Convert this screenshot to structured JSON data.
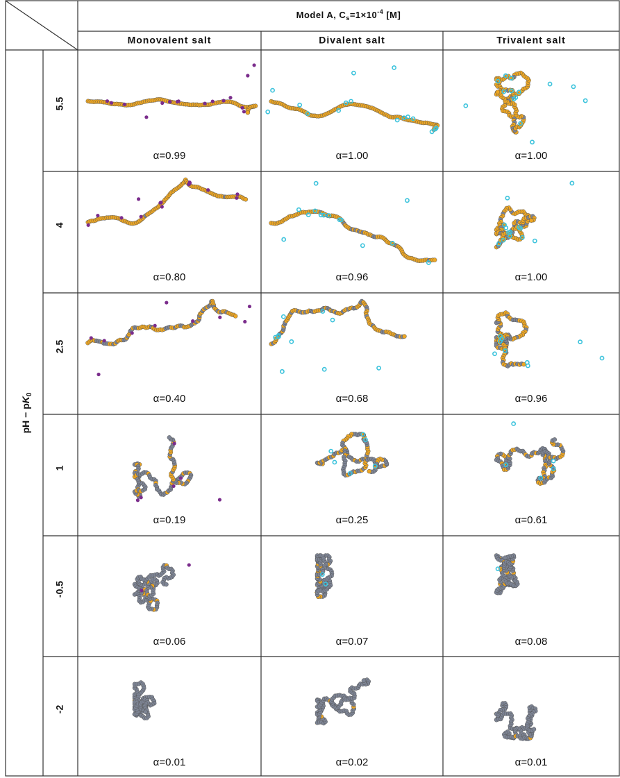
{
  "header": {
    "title_parts": [
      "Model A,  C",
      "s",
      "=1×10",
      "-4",
      "  [M]"
    ],
    "columns": [
      "Monovalent salt",
      "Divalent salt",
      "Trivalent salt"
    ]
  },
  "row_axis": {
    "label_parts": [
      "pH − p",
      "K",
      "0"
    ]
  },
  "rows": [
    {
      "label": "5.5",
      "cells": [
        "α=0.99",
        "α=1.00",
        "α=1.00"
      ]
    },
    {
      "label": "4",
      "cells": [
        "α=0.80",
        "α=0.96",
        "α=1.00"
      ]
    },
    {
      "label": "2.5",
      "cells": [
        "α=0.40",
        "α=0.68",
        "α=0.96"
      ]
    },
    {
      "label": "1",
      "cells": [
        "α=0.19",
        "α=0.25",
        "α=0.61"
      ]
    },
    {
      "label": "-0.5",
      "cells": [
        "α=0.06",
        "α=0.07",
        "α=0.08"
      ]
    },
    {
      "label": "-2",
      "cells": [
        "α=0.01",
        "α=0.02",
        "α=0.01"
      ]
    }
  ]
}
